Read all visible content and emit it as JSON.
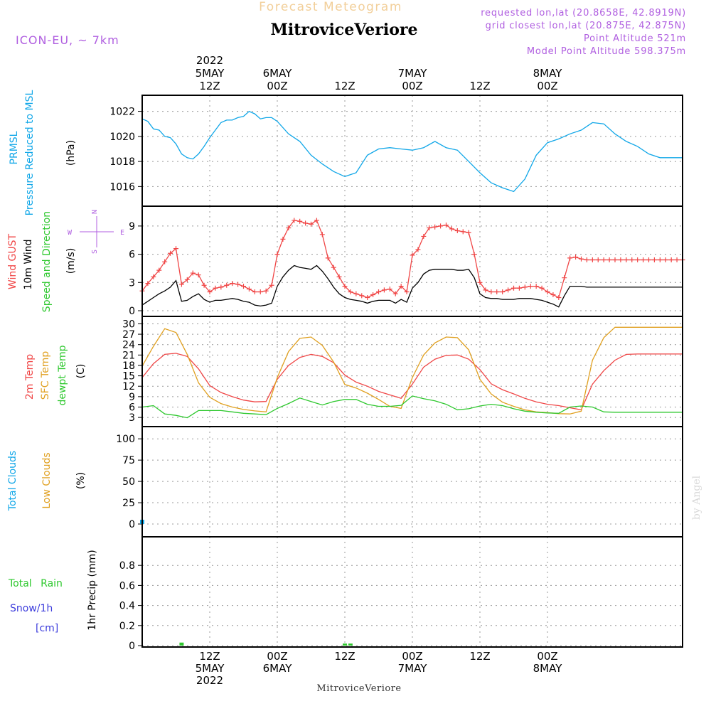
{
  "header": {
    "super_title": "Forecast Meteogram",
    "station": "MitroviceVeriore",
    "model": "ICON-EU, ~ 7km",
    "requested": "requested lon,lat (20.8658E, 42.8919N)",
    "grid": "grid closest lon,lat (20.875E, 42.875N)",
    "point_alt": "Point Altitude 521m",
    "model_alt": "Model Point Altitude 598.375m",
    "watermark": "by Angel",
    "footer": "MitroviceVeriore"
  },
  "time_axis": {
    "start_hour": 0,
    "end_hour": 96,
    "ticks": [
      {
        "h": 12,
        "top": [
          "2022",
          "5MAY",
          "12Z"
        ],
        "bottom": [
          "12Z",
          "5MAY",
          "2022"
        ]
      },
      {
        "h": 24,
        "top": [
          "6MAY",
          "00Z"
        ],
        "bottom": [
          "00Z",
          "6MAY"
        ]
      },
      {
        "h": 36,
        "top": [
          "12Z"
        ],
        "bottom": [
          "12Z"
        ]
      },
      {
        "h": 48,
        "top": [
          "7MAY",
          "00Z"
        ],
        "bottom": [
          "00Z",
          "7MAY"
        ]
      },
      {
        "h": 60,
        "top": [
          "12Z"
        ],
        "bottom": [
          "12Z"
        ]
      },
      {
        "h": 72,
        "top": [
          "8MAY",
          "00Z"
        ],
        "bottom": [
          "00Z",
          "8MAY"
        ]
      }
    ]
  },
  "chart_data": [
    {
      "type": "line",
      "panel": "pressure",
      "ylabel": [
        "PRMSL",
        "Pressure Reduced to MSL",
        "(hPa)"
      ],
      "ylim": [
        1015,
        1022.6
      ],
      "yticks": [
        1016,
        1018,
        1020,
        1022
      ],
      "grid": true,
      "x_hours": [
        0,
        1,
        2,
        3,
        4,
        5,
        6,
        7,
        8,
        9,
        10,
        11,
        12,
        13,
        14,
        15,
        16,
        17,
        18,
        19,
        20,
        21,
        22,
        23,
        24,
        26,
        28,
        30,
        32,
        34,
        36,
        38,
        40,
        42,
        44,
        46,
        48,
        50,
        52,
        54,
        56,
        58,
        60,
        62,
        64,
        66,
        68,
        70,
        72,
        74,
        76,
        78,
        80,
        82,
        84,
        86,
        88,
        90,
        92,
        94,
        96
      ],
      "series": [
        {
          "color": "#11a7e8",
          "values": [
            1021.4,
            1021.2,
            1020.6,
            1020.5,
            1020.0,
            1019.9,
            1019.4,
            1018.6,
            1018.3,
            1018.2,
            1018.6,
            1019.2,
            1019.9,
            1020.5,
            1021.1,
            1021.3,
            1021.3,
            1021.5,
            1021.6,
            1022.0,
            1021.8,
            1021.4,
            1021.5,
            1021.5,
            1021.2,
            1020.2,
            1019.6,
            1018.5,
            1017.8,
            1017.2,
            1016.8,
            1017.1,
            1018.5,
            1019.0,
            1019.1,
            1019.0,
            1018.9,
            1019.1,
            1019.6,
            1019.1,
            1018.9,
            1018.0,
            1017.1,
            1016.3,
            1015.9,
            1015.6,
            1016.6,
            1018.5,
            1019.5,
            1019.8,
            1020.2,
            1020.5,
            1021.1,
            1021.0,
            1020.2,
            1019.6,
            1019.2,
            1018.6,
            1018.3,
            1018.3,
            1018.3
          ]
        }
      ]
    },
    {
      "type": "line",
      "panel": "wind",
      "ylabel": [
        "Wind GUST",
        "10m Wind",
        "Speed and Direction",
        "(m/s)"
      ],
      "compass": [
        "N",
        "S",
        "W",
        "E"
      ],
      "ylim": [
        0,
        10.2
      ],
      "yticks": [
        0,
        3,
        6,
        9
      ],
      "grid": true,
      "x_hours": [
        0,
        1,
        2,
        3,
        4,
        5,
        6,
        7,
        8,
        9,
        10,
        11,
        12,
        13,
        14,
        15,
        16,
        17,
        18,
        19,
        20,
        21,
        22,
        23,
        24,
        25,
        26,
        27,
        28,
        29,
        30,
        31,
        32,
        33,
        34,
        35,
        36,
        37,
        38,
        39,
        40,
        41,
        42,
        43,
        44,
        45,
        46,
        47,
        48,
        49,
        50,
        51,
        52,
        53,
        54,
        55,
        56,
        57,
        58,
        59,
        60,
        61,
        62,
        63,
        64,
        65,
        66,
        67,
        68,
        69,
        70,
        71,
        72,
        73,
        74,
        75,
        76,
        77,
        78,
        79,
        80,
        81,
        82,
        83,
        84,
        85,
        86,
        87,
        88,
        89,
        90,
        91,
        92,
        93,
        94,
        95,
        96
      ],
      "series": [
        {
          "name": "Wind GUST",
          "color": "#f04646",
          "marker": "+",
          "values": [
            2.1,
            2.9,
            3.6,
            4.3,
            5.2,
            6.1,
            6.6,
            2.8,
            3.3,
            4.0,
            3.8,
            2.7,
            2.0,
            2.4,
            2.5,
            2.7,
            2.9,
            2.8,
            2.6,
            2.3,
            2.0,
            2.0,
            2.1,
            2.7,
            6.0,
            7.6,
            8.8,
            9.6,
            9.5,
            9.3,
            9.2,
            9.6,
            8.1,
            5.6,
            4.6,
            3.6,
            2.6,
            2.0,
            1.8,
            1.6,
            1.4,
            1.7,
            2.0,
            2.2,
            2.3,
            1.8,
            2.6,
            2.0,
            5.9,
            6.5,
            7.9,
            8.8,
            8.9,
            9.0,
            9.1,
            8.7,
            8.5,
            8.4,
            8.3,
            6.0,
            3.0,
            2.2,
            2.0,
            2.0,
            2.0,
            2.2,
            2.4,
            2.4,
            2.5,
            2.6,
            2.6,
            2.4,
            2.0,
            1.7,
            1.4,
            3.5,
            5.6,
            5.7,
            5.5,
            5.4,
            5.4,
            5.4,
            5.4,
            5.4,
            5.4,
            5.4,
            5.4,
            5.4,
            5.4,
            5.4,
            5.4,
            5.4,
            5.4,
            5.4,
            5.4,
            5.4,
            5.4
          ]
        },
        {
          "name": "10m Wind",
          "color": "#000000",
          "values": [
            0.6,
            1.0,
            1.4,
            1.8,
            2.1,
            2.5,
            3.2,
            1.0,
            1.1,
            1.5,
            1.8,
            1.2,
            0.9,
            1.1,
            1.1,
            1.2,
            1.3,
            1.2,
            1.0,
            0.9,
            0.6,
            0.5,
            0.6,
            0.8,
            2.6,
            3.6,
            4.3,
            4.8,
            4.6,
            4.5,
            4.4,
            4.8,
            4.2,
            3.4,
            2.5,
            1.8,
            1.4,
            1.2,
            1.1,
            1.0,
            0.8,
            1.0,
            1.1,
            1.1,
            1.1,
            0.8,
            1.2,
            0.9,
            2.4,
            3.0,
            3.9,
            4.3,
            4.4,
            4.4,
            4.4,
            4.4,
            4.3,
            4.3,
            4.4,
            3.5,
            1.8,
            1.4,
            1.3,
            1.3,
            1.2,
            1.2,
            1.2,
            1.3,
            1.3,
            1.3,
            1.2,
            1.1,
            0.9,
            0.7,
            0.4,
            1.6,
            2.6,
            2.6,
            2.6,
            2.5,
            2.5,
            2.5,
            2.5,
            2.5,
            2.5,
            2.5,
            2.5,
            2.5,
            2.5,
            2.5,
            2.5,
            2.5,
            2.5,
            2.5,
            2.5,
            2.5,
            2.5
          ]
        }
      ]
    },
    {
      "type": "line",
      "panel": "temperature",
      "ylabel": [
        "2m Temp",
        "SFC Temp",
        "dewpt Temp",
        "(C)"
      ],
      "ylim": [
        2,
        30.5
      ],
      "yticks": [
        3,
        6,
        9,
        12,
        15,
        18,
        21,
        24,
        27,
        30
      ],
      "grid": true,
      "x_hours": [
        0,
        2,
        4,
        6,
        8,
        10,
        12,
        14,
        16,
        18,
        20,
        22,
        24,
        26,
        28,
        30,
        32,
        34,
        36,
        38,
        40,
        42,
        44,
        46,
        48,
        50,
        52,
        54,
        56,
        58,
        60,
        62,
        64,
        66,
        68,
        70,
        72,
        74,
        76,
        78,
        80,
        82,
        84,
        86,
        88,
        90,
        92,
        94,
        96
      ],
      "series": [
        {
          "name": "2m Temp",
          "color": "#f04646",
          "values": [
            14.5,
            18.5,
            21.2,
            21.5,
            20.6,
            17.0,
            12.2,
            10.2,
            9.0,
            8.0,
            7.5,
            7.6,
            14.0,
            18.0,
            20.3,
            21.2,
            20.6,
            18.8,
            15.2,
            13.2,
            12.0,
            10.5,
            9.5,
            8.5,
            12.6,
            17.5,
            19.8,
            20.9,
            21.0,
            19.8,
            16.8,
            12.7,
            11.0,
            9.8,
            8.5,
            7.5,
            6.8,
            6.4,
            5.8,
            5.2,
            12.6,
            16.5,
            19.5,
            21.2,
            21.3,
            21.3,
            21.3,
            21.3,
            21.3
          ]
        },
        {
          "name": "SFC Temp",
          "color": "#e0a020",
          "values": [
            17.8,
            23.5,
            28.6,
            27.5,
            21.2,
            13.0,
            8.8,
            7.0,
            6.0,
            5.3,
            4.9,
            4.6,
            14.5,
            22.0,
            25.8,
            26.2,
            23.8,
            19.0,
            12.5,
            11.5,
            10.0,
            8.2,
            6.2,
            5.6,
            14.5,
            21.0,
            24.5,
            26.2,
            26.0,
            22.5,
            14.0,
            9.8,
            7.4,
            6.2,
            5.2,
            4.6,
            4.4,
            4.1,
            4.0,
            4.8,
            19.5,
            26.0,
            29.0,
            29.0,
            29.0,
            29.0,
            29.0,
            29.0,
            29.0
          ]
        },
        {
          "name": "dewpt Temp",
          "color": "#2ec82e",
          "values": [
            6.0,
            6.4,
            4.0,
            3.6,
            2.9,
            5.0,
            5.0,
            5.0,
            4.6,
            4.2,
            4.0,
            3.8,
            5.6,
            7.0,
            8.6,
            7.6,
            6.6,
            7.6,
            8.2,
            8.2,
            6.8,
            6.2,
            6.2,
            6.5,
            9.2,
            8.4,
            7.8,
            6.8,
            5.2,
            5.5,
            6.3,
            6.8,
            6.4,
            5.5,
            4.8,
            4.5,
            4.3,
            4.2,
            6.0,
            6.3,
            6.0,
            4.6,
            4.5,
            4.5,
            4.5,
            4.5,
            4.5,
            4.5,
            4.5
          ]
        }
      ]
    },
    {
      "type": "bar",
      "panel": "clouds",
      "ylabel": [
        "Total Clouds",
        "Low Clouds",
        "(%)"
      ],
      "ylim": [
        -5,
        106
      ],
      "yticks": [
        0,
        25,
        50,
        75,
        100
      ],
      "grid": true,
      "x_hours": [
        0,
        1,
        2,
        3,
        4,
        5,
        6,
        7,
        8,
        9,
        10,
        11,
        12,
        13,
        14,
        15,
        16,
        17,
        18,
        19,
        20,
        21,
        22,
        23,
        24,
        25,
        26,
        27,
        28,
        29,
        30,
        31,
        32,
        33,
        34,
        35,
        36,
        37,
        38,
        39,
        40,
        41,
        42,
        43,
        44,
        45,
        46,
        47,
        48,
        49,
        50,
        51,
        52,
        53,
        54,
        55,
        56,
        57,
        58,
        59,
        60,
        61,
        62,
        63,
        64,
        65,
        66,
        67,
        68,
        69,
        70,
        71,
        72,
        73,
        74,
        75,
        76,
        77,
        78,
        79,
        80,
        81,
        82,
        83,
        84,
        85,
        86,
        87,
        88,
        89,
        90,
        91,
        92,
        93,
        94,
        95,
        96
      ],
      "series": [
        {
          "name": "Total Clouds",
          "color": "#11a7e8",
          "values": [
            5,
            0,
            0,
            0,
            0,
            0,
            0,
            0,
            0,
            0,
            0,
            0,
            0,
            0,
            0,
            0,
            0,
            0,
            0,
            0,
            0,
            0,
            0,
            0,
            0,
            0,
            0,
            0,
            0,
            0,
            0,
            0,
            0,
            0,
            0,
            0,
            0,
            0,
            0,
            0,
            0,
            0,
            0,
            0,
            0,
            0,
            0,
            0,
            0,
            0,
            0,
            0,
            0,
            0,
            0,
            0,
            0,
            0,
            0,
            0,
            0,
            0,
            0,
            0,
            0,
            0,
            0,
            0,
            0,
            0,
            0,
            0,
            0,
            0,
            0,
            0,
            0,
            0,
            0,
            0,
            0,
            0,
            0,
            0,
            0,
            0,
            0,
            0,
            0,
            0,
            0,
            0,
            0,
            0,
            0,
            0,
            0
          ]
        },
        {
          "name": "Low Clouds",
          "color": "#e0a020",
          "values": [
            0,
            0,
            0,
            0,
            0,
            0,
            0,
            0,
            0,
            0,
            0,
            0,
            0,
            0,
            0,
            0,
            0,
            0,
            0,
            0,
            0,
            0,
            0,
            0,
            0,
            0,
            0,
            0,
            0,
            0,
            0,
            0,
            0,
            0,
            0,
            0,
            0,
            0,
            0,
            0,
            0,
            0,
            0,
            0,
            0,
            0,
            0,
            0,
            0,
            0,
            0,
            0,
            0,
            0,
            0,
            0,
            0,
            0,
            0,
            0,
            0,
            0,
            0,
            0,
            0,
            0,
            0,
            0,
            0,
            0,
            0,
            0,
            0,
            0,
            0,
            0,
            0,
            0,
            0,
            0,
            0,
            0,
            0,
            0,
            0,
            0,
            0,
            0,
            0,
            0,
            0,
            0,
            0,
            0,
            0,
            0,
            0
          ]
        }
      ]
    },
    {
      "type": "bar",
      "panel": "precip",
      "ylabel": [
        "Total Rain",
        "Snow/1h",
        "[cm]",
        "1hr Precip (mm)"
      ],
      "ylim": [
        0,
        1.0
      ],
      "yticks": [
        0,
        0.2,
        0.4,
        0.6,
        0.8
      ],
      "grid": true,
      "x_hours": [
        7,
        36,
        37
      ],
      "series": [
        {
          "name": "Total Rain",
          "color": "#2ec82e",
          "values": [
            0.03,
            0.02,
            0.02
          ]
        }
      ]
    }
  ]
}
